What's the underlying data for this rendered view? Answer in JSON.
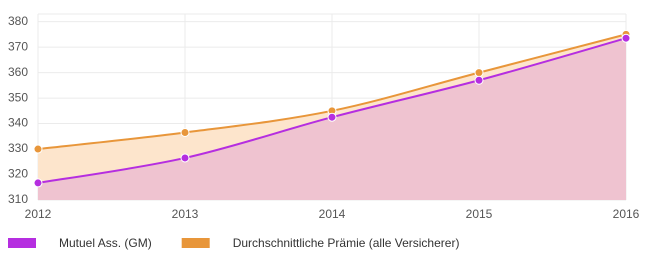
{
  "chart_data": {
    "type": "area",
    "x": [
      2012,
      2013,
      2014,
      2015,
      2016
    ],
    "series": [
      {
        "name": "Mutuel Ass. (GM)",
        "color": "#b52ee0",
        "fill": "#efc3d0",
        "values": [
          316.7,
          326.5,
          342.5,
          357,
          373.5
        ]
      },
      {
        "name": "Durchschnittliche Prämie (alle Versicherer)",
        "color": "#e8963a",
        "fill": "#fde5cc",
        "values": [
          330,
          336.5,
          345,
          360,
          375
        ]
      }
    ],
    "xlim": [
      2012,
      2016
    ],
    "xticks": [
      2012,
      2013,
      2014,
      2015,
      2016
    ],
    "ylim": [
      310,
      383
    ],
    "yticks": [
      310,
      320,
      330,
      340,
      350,
      360,
      370,
      380
    ],
    "grid": true,
    "legend": "bottom-left"
  }
}
